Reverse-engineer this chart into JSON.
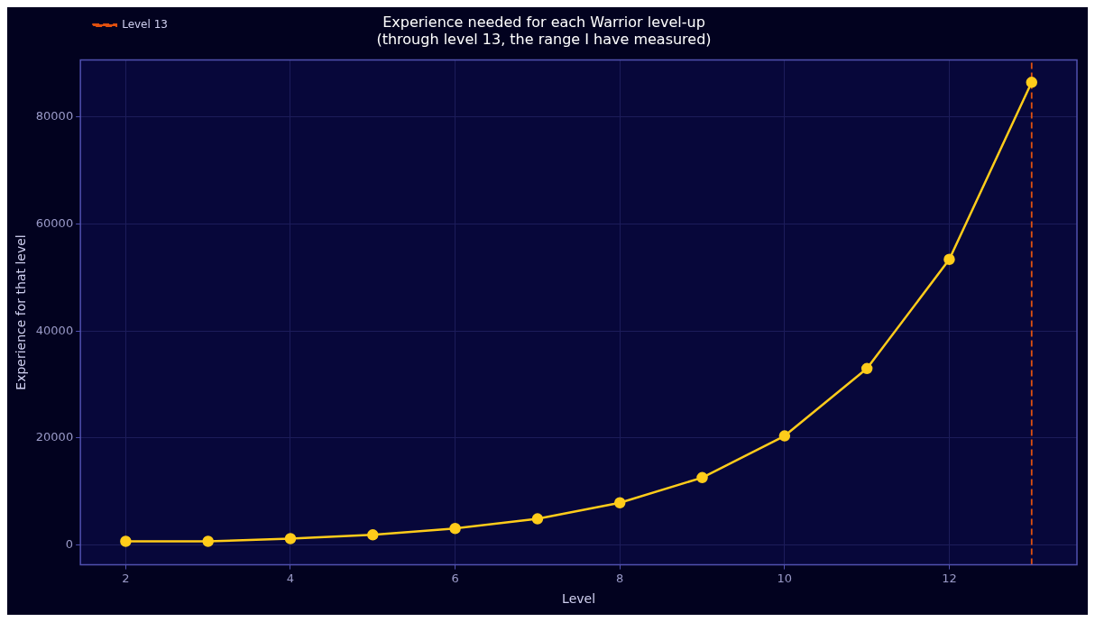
{
  "chart_data": {
    "type": "line",
    "title": "Experience needed for each Warrior level-up\n(through level 13, the range I have measured)",
    "xlabel": "Level",
    "ylabel": "Experience for that level",
    "x": [
      2,
      3,
      4,
      5,
      6,
      7,
      8,
      9,
      10,
      11,
      12,
      13
    ],
    "series": [
      {
        "color": "#ffcc1a",
        "values": [
          700,
          700,
          1200,
          1900,
          3100,
          4900,
          7900,
          12600,
          20400,
          33000,
          53400,
          86500
        ]
      }
    ],
    "xlim": [
      1.45,
      13.55
    ],
    "xticks": [
      2,
      4,
      6,
      8,
      10,
      12
    ],
    "ylim": [
      -3700,
      90700
    ],
    "yticks": [
      0,
      20000,
      40000,
      60000,
      80000
    ],
    "ref_lines": [
      {
        "axis": "x",
        "value": 13,
        "label": "Level 13",
        "color": "#e0500f",
        "line_style": "dashed"
      }
    ],
    "grid": true,
    "legend": "top left",
    "marker": "circle",
    "line_style": "solid"
  }
}
